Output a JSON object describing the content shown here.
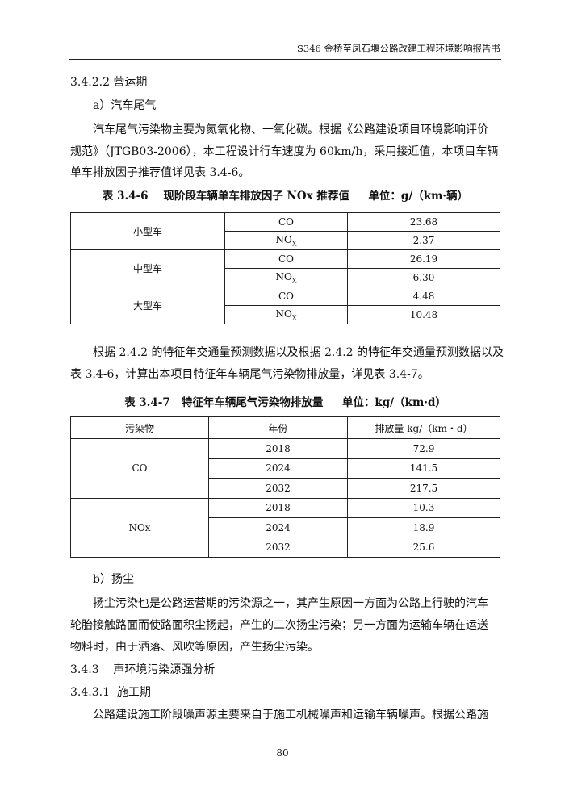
{
  "header": "S346 金桥至凤石堰公路改建工程环境影响报告书",
  "s1": "3.4.2.2  营运期",
  "a": "a）汽车尾气",
  "p1": [
    "汽车尾气污染物主要为氮氧化物、一氧化碳。根据《公路建设项目环境影响评价",
    "规范》（JTGB03-2006），本工程设计行车速度为 60km/h，采用接近值，本项目车辆",
    "单车排放因子推荐值详见表 3.4-6。"
  ],
  "t1": {
    "caption": "表 3.4-6    现阶段车辆单车排放因子 NOx 推荐值     单位：g/（km·辆）",
    "groups": [
      {
        "type": "小型车",
        "co": "23.68",
        "nox": "2.37"
      },
      {
        "type": "中型车",
        "co": "26.19",
        "nox": "6.30"
      },
      {
        "type": "大型车",
        "co": "4.48",
        "nox": "10.48"
      }
    ],
    "co": "CO",
    "nox": "NO",
    "nox_sub": "X"
  },
  "p2": [
    "根据 2.4.2 的特征年交通量预测数据以及根据 2.4.2 的特征年交通量预测数据以及",
    "表 3.4-6，计算出本项目特征年车辆尾气污染物排放量，详见表 3.4-7。"
  ],
  "t2": {
    "caption": "表 3.4-7   特征年车辆尾气污染物排放量     单位：kg/（km·d）",
    "headers": [
      "污染物",
      "年份",
      "排放量 kg/（km・d）"
    ],
    "groups": [
      {
        "p": "CO",
        "rows": [
          [
            "2018",
            "72.9"
          ],
          [
            "2024",
            "141.5"
          ],
          [
            "2032",
            "217.5"
          ]
        ]
      },
      {
        "p": "NOx",
        "rows": [
          [
            "2018",
            "10.3"
          ],
          [
            "2024",
            "18.9"
          ],
          [
            "2032",
            "25.6"
          ]
        ]
      }
    ]
  },
  "b": "b）扬尘",
  "p3": [
    "扬尘污染也是公路运营期的污染源之一，其产生原因一方面为公路上行驶的汽车",
    "轮胎接触路面而使路面积尘扬起，产生的二次扬尘污染；另一方面为运输车辆在运送",
    "物料时，由于洒落、风吹等原因，产生扬尘污染。"
  ],
  "s2": "3.4.3    声环境污染源强分析",
  "s3": "3.4.3.1  施工期",
  "p4": "公路建设施工阶段噪声源主要来自于施工机械噪声和运输车辆噪声。根据公路施",
  "page_number": "80"
}
